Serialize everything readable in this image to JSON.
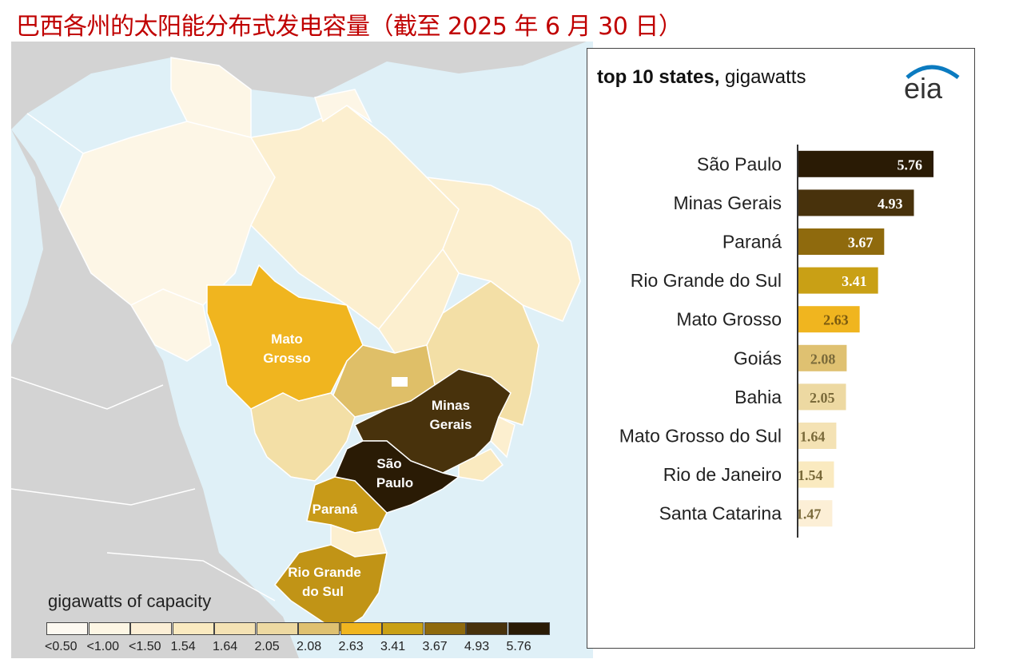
{
  "title": "巴西各州的太阳能分布式发电容量（截至 2025 年 6 月 30 日）",
  "map": {
    "labels": {
      "mato_grosso_1": "Mato",
      "mato_grosso_2": "Grosso",
      "minas_gerais_1": "Minas",
      "minas_gerais_2": "Gerais",
      "sao_paulo_1": "São",
      "sao_paulo_2": "Paulo",
      "parana": "Paraná",
      "rio_grande_1": "Rio Grande",
      "rio_grande_2": "do Sul"
    },
    "state_colors": {
      "lowest": "#fdf6e6",
      "low": "#fcefcf",
      "mid_low": "#f3dfa6",
      "goias": "#dfbf68",
      "mato_grosso": "#f0b51f",
      "rio_grande_do_sul": "#c19416",
      "parana": "#c89a18",
      "minas_gerais": "#48320c",
      "sao_paulo": "#2a1b05",
      "neighbor_country": "#d3d3d3",
      "ocean": "#dff0f7"
    }
  },
  "legend": {
    "title": "gigawatts of capacity",
    "items": [
      {
        "label": "<0.50",
        "color": "#fdf9f1"
      },
      {
        "label": "<1.00",
        "color": "#fdf6e4"
      },
      {
        "label": "<1.50",
        "color": "#fcefd6"
      },
      {
        "label": "1.54",
        "color": "#faeac0"
      },
      {
        "label": "1.64",
        "color": "#f4e2b4"
      },
      {
        "label": "2.05",
        "color": "#edd9a2"
      },
      {
        "label": "2.08",
        "color": "#dfc171"
      },
      {
        "label": "2.63",
        "color": "#f0b51f"
      },
      {
        "label": "3.41",
        "color": "#c9a015"
      },
      {
        "label": "3.67",
        "color": "#8f6a0d"
      },
      {
        "label": "4.93",
        "color": "#48320c"
      },
      {
        "label": "5.76",
        "color": "#2a1b05"
      }
    ]
  },
  "chart_panel": {
    "heading_bold": "top 10 states,",
    "heading_rest": " gigawatts",
    "logo_text": "eia",
    "logo_color": "#0b7bc0"
  },
  "chart_data": {
    "type": "bar",
    "orientation": "horizontal",
    "title": "top 10 states, gigawatts",
    "categories": [
      "São Paulo",
      "Minas Gerais",
      "Paraná",
      "Rio Grande do Sul",
      "Mato Grosso",
      "Goiás",
      "Bahia",
      "Mato Grosso do Sul",
      "Rio de Janeiro",
      "Santa Catarina"
    ],
    "values": [
      5.76,
      4.93,
      3.67,
      3.41,
      2.63,
      2.08,
      2.05,
      1.64,
      1.54,
      1.47
    ],
    "data_labels": [
      "5.76",
      "4.93",
      "3.67",
      "3.41",
      "2.63",
      "2.08",
      "2.05",
      "1.64",
      "1.54",
      "1.47"
    ],
    "bar_colors": [
      "#2a1b05",
      "#48320c",
      "#8f6a0d",
      "#c9a015",
      "#f0b51f",
      "#dfc171",
      "#edd9a2",
      "#f4e2b4",
      "#faeac0",
      "#fcefd6"
    ],
    "label_colors": [
      "#ffffff",
      "#ffffff",
      "#ffffff",
      "#ffffff",
      "#7a5a10",
      "#7a6a3a",
      "#7a6a3a",
      "#7a6a3a",
      "#7a6a3a",
      "#7a6a3a"
    ],
    "xlim": [
      0,
      5.76
    ],
    "grid": false,
    "legend": "none"
  }
}
